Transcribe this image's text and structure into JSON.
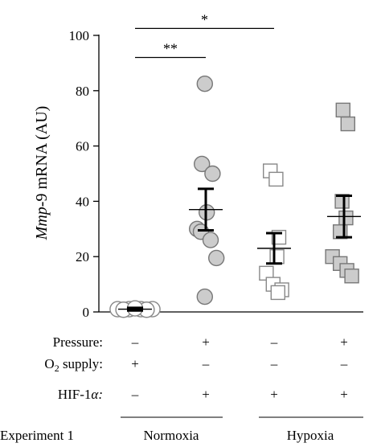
{
  "chart_data": {
    "type": "scatter",
    "ylabel_italic": "Mmp",
    "ylabel_rest": "-9 mRNA (AU)",
    "ylim": [
      0,
      100
    ],
    "yticks": [
      0,
      20,
      40,
      60,
      80,
      100
    ],
    "ytick_labels": [
      "0",
      "20",
      "40",
      "60",
      "80",
      "100"
    ],
    "groups": [
      {
        "marker": "circle",
        "fill": "#ffffff",
        "stroke": "#888888",
        "points": [
          {
            "x": -0.9,
            "y": 1
          },
          {
            "x": -0.3,
            "y": 1
          },
          {
            "x": 0.3,
            "y": 1
          },
          {
            "x": 0.9,
            "y": 1
          },
          {
            "x": -0.6,
            "y": 0.8
          },
          {
            "x": 0.6,
            "y": 0.8
          },
          {
            "x": 0.0,
            "y": 1.3
          }
        ],
        "mean": 1,
        "sem_low": 0.5,
        "sem_high": 1.5
      },
      {
        "marker": "circle",
        "fill": "#cccccc",
        "stroke": "#777777",
        "points": [
          {
            "x": -0.05,
            "y": 82.5
          },
          {
            "x": -0.2,
            "y": 53.5
          },
          {
            "x": 0.35,
            "y": 50
          },
          {
            "x": 0.05,
            "y": 36
          },
          {
            "x": -0.45,
            "y": 30
          },
          {
            "x": -0.25,
            "y": 29
          },
          {
            "x": 0.25,
            "y": 26
          },
          {
            "x": 0.55,
            "y": 19.5
          },
          {
            "x": -0.05,
            "y": 5.5
          }
        ],
        "mean": 37,
        "sem_low": 29.5,
        "sem_high": 44.5
      },
      {
        "marker": "square",
        "fill": "#ffffff",
        "stroke": "#888888",
        "points": [
          {
            "x": -0.2,
            "y": 51
          },
          {
            "x": 0.1,
            "y": 48
          },
          {
            "x": 0.25,
            "y": 27
          },
          {
            "x": 0.15,
            "y": 20
          },
          {
            "x": -0.4,
            "y": 14
          },
          {
            "x": -0.05,
            "y": 10
          },
          {
            "x": 0.4,
            "y": 8
          },
          {
            "x": 0.2,
            "y": 7
          }
        ],
        "mean": 23,
        "sem_low": 17.5,
        "sem_high": 28.5
      },
      {
        "marker": "square",
        "fill": "#cccccc",
        "stroke": "#777777",
        "points": [
          {
            "x": -0.05,
            "y": 73
          },
          {
            "x": 0.2,
            "y": 68
          },
          {
            "x": -0.1,
            "y": 40
          },
          {
            "x": 0.1,
            "y": 34
          },
          {
            "x": -0.2,
            "y": 29
          },
          {
            "x": -0.6,
            "y": 20
          },
          {
            "x": -0.2,
            "y": 17.5
          },
          {
            "x": 0.15,
            "y": 15
          },
          {
            "x": 0.4,
            "y": 13
          }
        ],
        "mean": 34.5,
        "sem_low": 27,
        "sem_high": 42
      }
    ],
    "significance": [
      {
        "label": "*",
        "from": 0,
        "to": 2,
        "y": 102.5
      },
      {
        "label": "**",
        "from": 0,
        "to": 1,
        "y": 92
      }
    ]
  },
  "table": {
    "rows": [
      {
        "label_main": "Pressure:",
        "label_sub": "",
        "label_rest": "",
        "values": [
          "–",
          "+",
          "–",
          "+"
        ]
      },
      {
        "label_main": "O",
        "label_sub": "2",
        "label_rest": " supply:",
        "values": [
          "+",
          "–",
          "–",
          "–"
        ]
      },
      {
        "label_main": "HIF-1",
        "label_sub": "",
        "label_rest": "α:",
        "values": [
          "–",
          "+",
          "+",
          "+"
        ]
      }
    ],
    "experiment_label": "Experiment 1",
    "conditions": [
      "Normoxia",
      "Hypoxia"
    ]
  }
}
